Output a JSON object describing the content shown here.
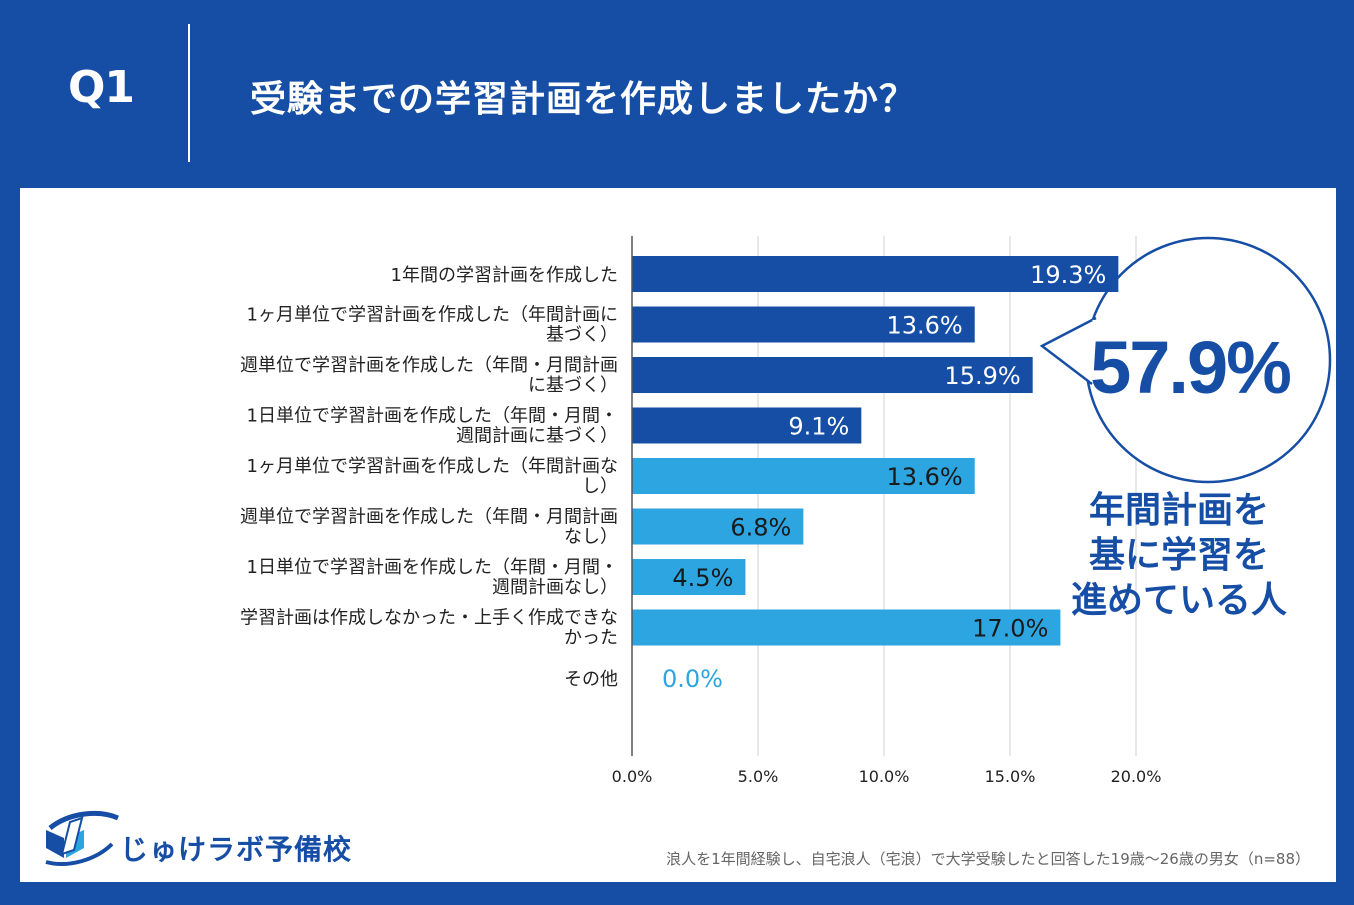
{
  "header": {
    "q_label": "Q1",
    "title": "受験までの学習計画を作成しましたか？"
  },
  "chart_data": {
    "type": "bar",
    "orientation": "horizontal",
    "categories": [
      [
        "1年間の学習計画を作成した"
      ],
      [
        "1ヶ月単位で学習計画を作成した（年間計画に",
        "基づく）"
      ],
      [
        "週単位で学習計画を作成した（年間・月間計画",
        "に基づく）"
      ],
      [
        "1日単位で学習計画を作成した（年間・月間・",
        "週間計画に基づく）"
      ],
      [
        "1ヶ月単位で学習計画を作成した（年間計画な",
        "し）"
      ],
      [
        "週単位で学習計画を作成した（年間・月間計画",
        "なし）"
      ],
      [
        "1日単位で学習計画を作成した（年間・月間・",
        "週間計画なし）"
      ],
      [
        "学習計画は作成しなかった・上手く作成できな",
        "かった"
      ],
      [
        "その他"
      ]
    ],
    "values": [
      19.3,
      13.6,
      15.9,
      9.1,
      13.6,
      6.8,
      4.5,
      17.0,
      0.0
    ],
    "value_labels": [
      "19.3%",
      "13.6%",
      "15.9%",
      "9.1%",
      "13.6%",
      "6.8%",
      "4.5%",
      "17.0%",
      "0.0%"
    ],
    "bar_groups": [
      "dark",
      "dark",
      "dark",
      "dark",
      "light",
      "light",
      "light",
      "light",
      "light"
    ],
    "xlim": [
      0,
      20
    ],
    "xticks": [
      0,
      5,
      10,
      15,
      20
    ],
    "xtick_labels": [
      "0.0%",
      "5.0%",
      "10.0%",
      "15.0%",
      "20.0%"
    ],
    "grid": true,
    "colors": {
      "dark": "#164ea6",
      "light": "#2ca5e0",
      "grid": "#d0d0d0",
      "axis": "#555555"
    }
  },
  "callout": {
    "number_main": "57",
    "number_small": ".9%",
    "lines": [
      "年間計画を",
      "基に学習を",
      "進めている人"
    ]
  },
  "logo": {
    "text": "じゅけラボ予備校",
    "icon": "book-swoosh-icon"
  },
  "footnote": "浪人を1年間経験し、自宅浪人（宅浪）で大学受験したと回答した19歳～26歳の男女（n=88）",
  "colors": {
    "brand": "#164ea6",
    "background": "#ffffff"
  }
}
